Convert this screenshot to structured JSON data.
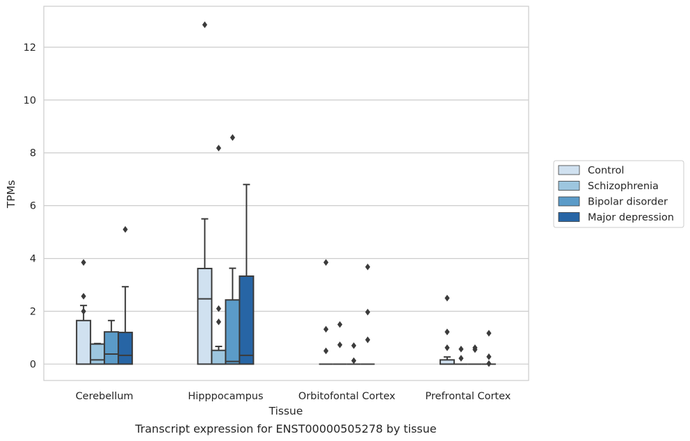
{
  "chart_data": {
    "type": "box",
    "title": "",
    "caption": "Transcript expression for ENST00000505278 by tissue",
    "xlabel": "Tissue",
    "ylabel": "TPMs",
    "ylim": [
      -0.62,
      13.55
    ],
    "yticks": [
      0,
      2,
      4,
      6,
      8,
      10,
      12
    ],
    "grid": "horizontal",
    "legend_position": "right",
    "categories": [
      "Cerebellum",
      "Hipppocampus",
      "Orbitofontal Cortex",
      "Prefrontal Cortex"
    ],
    "series": [
      {
        "name": "Control",
        "color": "#d0e1f0",
        "boxes": [
          {
            "q1": 0,
            "median": 0,
            "q3": 1.65,
            "whisker_low": 0,
            "whisker_high": 2.22,
            "outliers": [
              2.0,
              2.57,
              3.85
            ]
          },
          {
            "q1": 0,
            "median": 2.47,
            "q3": 3.62,
            "whisker_low": 0,
            "whisker_high": 5.5,
            "outliers": [
              12.85
            ]
          },
          {
            "q1": 0,
            "median": 0,
            "q3": 0,
            "whisker_low": 0,
            "whisker_high": 0,
            "outliers": [
              0.5,
              1.32,
              3.85
            ]
          },
          {
            "q1": 0,
            "median": 0,
            "q3": 0.16,
            "whisker_low": 0,
            "whisker_high": 0.27,
            "outliers": [
              0.62,
              1.22,
              2.5
            ]
          }
        ]
      },
      {
        "name": "Schizophrenia",
        "color": "#9dc6df",
        "boxes": [
          {
            "q1": 0,
            "median": 0.16,
            "q3": 0.76,
            "whisker_low": 0,
            "whisker_high": 0.78,
            "outliers": []
          },
          {
            "q1": 0,
            "median": 0,
            "q3": 0.52,
            "whisker_low": 0,
            "whisker_high": 0.67,
            "outliers": [
              1.6,
              2.1,
              8.18
            ]
          },
          {
            "q1": 0,
            "median": 0,
            "q3": 0,
            "whisker_low": 0,
            "whisker_high": 0,
            "outliers": [
              0.73,
              1.5
            ]
          },
          {
            "q1": 0,
            "median": 0,
            "q3": 0,
            "whisker_low": 0,
            "whisker_high": 0,
            "outliers": [
              0.22,
              0.57
            ]
          }
        ]
      },
      {
        "name": "Bipolar disorder",
        "color": "#5b9bc8",
        "boxes": [
          {
            "q1": 0,
            "median": 0.38,
            "q3": 1.22,
            "whisker_low": 0,
            "whisker_high": 1.65,
            "outliers": []
          },
          {
            "q1": 0,
            "median": 0.1,
            "q3": 2.43,
            "whisker_low": 0,
            "whisker_high": 3.63,
            "outliers": [
              8.58
            ]
          },
          {
            "q1": 0,
            "median": 0,
            "q3": 0,
            "whisker_low": 0,
            "whisker_high": 0,
            "outliers": [
              0.13,
              0.7
            ]
          },
          {
            "q1": 0,
            "median": 0,
            "q3": 0,
            "whisker_low": 0,
            "whisker_high": 0,
            "outliers": [
              0.55,
              0.62
            ]
          }
        ]
      },
      {
        "name": "Major depression",
        "color": "#2765a5",
        "boxes": [
          {
            "q1": 0,
            "median": 0.33,
            "q3": 1.2,
            "whisker_low": 0,
            "whisker_high": 2.93,
            "outliers": [
              5.1
            ]
          },
          {
            "q1": 0,
            "median": 0.33,
            "q3": 3.33,
            "whisker_low": 0,
            "whisker_high": 6.8,
            "outliers": []
          },
          {
            "q1": 0,
            "median": 0,
            "q3": 0,
            "whisker_low": 0,
            "whisker_high": 0,
            "outliers": [
              0.92,
              1.97,
              3.68
            ]
          },
          {
            "q1": 0,
            "median": 0,
            "q3": 0,
            "whisker_low": 0,
            "whisker_high": 0,
            "outliers": [
              0.02,
              0.28,
              1.17
            ]
          }
        ]
      }
    ]
  }
}
